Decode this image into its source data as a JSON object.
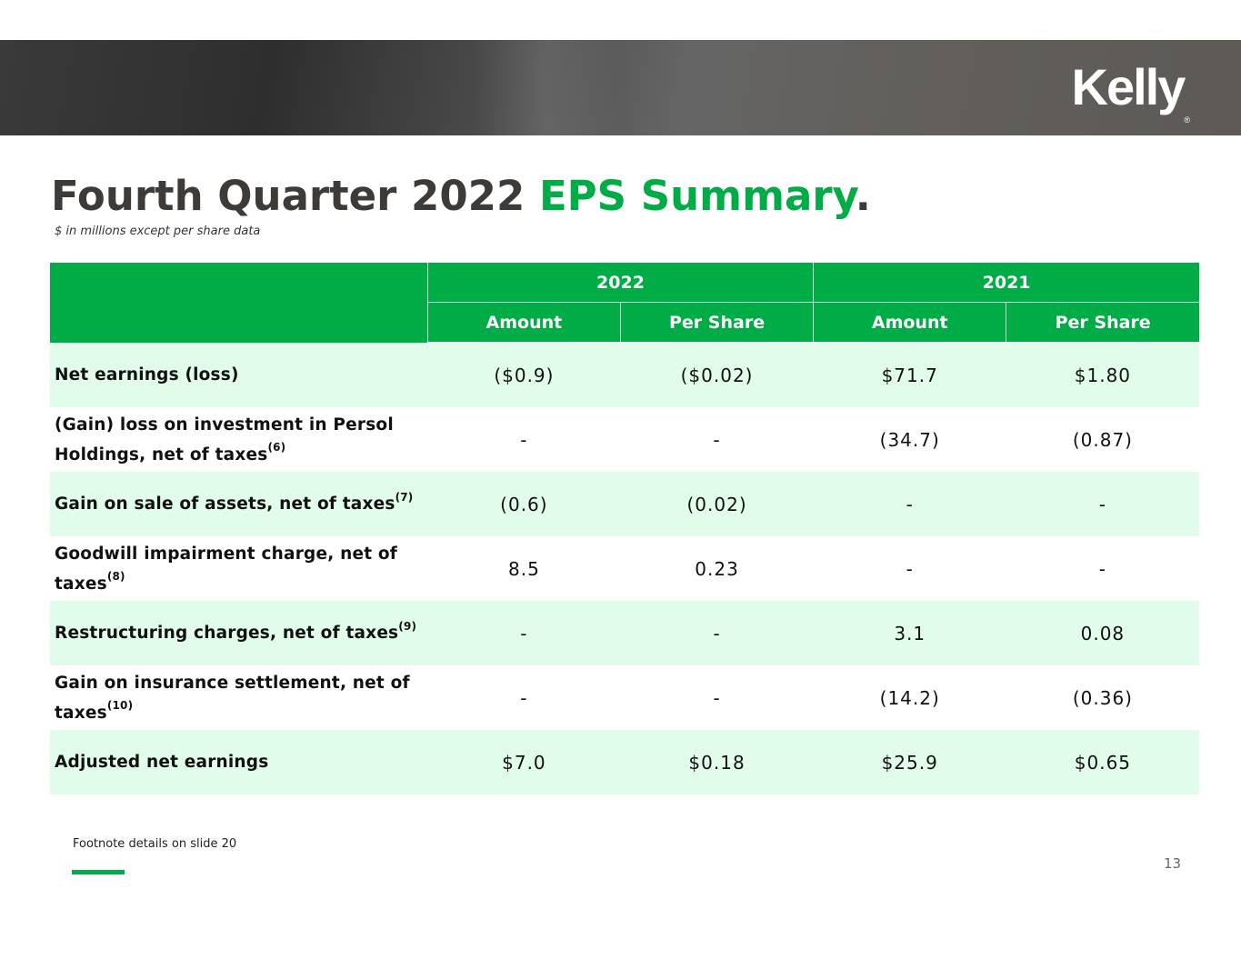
{
  "header": {
    "logo_text": "Kelly",
    "logo_mark": "®"
  },
  "title": {
    "part1": "Fourth Quarter 2022 ",
    "accent": "EPS Summary",
    "period": "."
  },
  "subtitle": "$ in millions except per share data",
  "table": {
    "year_headers": [
      "2022",
      "2021"
    ],
    "sub_headers": [
      "Amount",
      "Per Share",
      "Amount",
      "Per Share"
    ],
    "rows": [
      {
        "label": "Net earnings (loss)",
        "sup": "",
        "values": [
          "($0.9)",
          "($0.02)",
          "$71.7",
          "$1.80"
        ]
      },
      {
        "label": "(Gain) loss on investment in Persol Holdings, net of taxes",
        "sup": "(6)",
        "values": [
          "-",
          "-",
          "(34.7)",
          "(0.87)"
        ]
      },
      {
        "label": "Gain on sale of assets, net of taxes",
        "sup": "(7)",
        "values": [
          "(0.6)",
          "(0.02)",
          "-",
          "-"
        ]
      },
      {
        "label": "Goodwill impairment charge, net of taxes",
        "sup": "(8)",
        "values": [
          "8.5",
          "0.23",
          "-",
          "-"
        ]
      },
      {
        "label": "Restructuring charges, net of taxes",
        "sup": "(9)",
        "values": [
          "-",
          "-",
          "3.1",
          "0.08"
        ]
      },
      {
        "label": "Gain on insurance settlement, net of taxes",
        "sup": "(10)",
        "values": [
          "-",
          "-",
          "(14.2)",
          "(0.36)"
        ]
      },
      {
        "label": "Adjusted net earnings",
        "sup": "",
        "values": [
          "$7.0",
          "$0.18",
          "$25.9",
          "$0.65"
        ]
      }
    ]
  },
  "footnote": "Footnote details on slide 20",
  "page_number": "13",
  "colors": {
    "accent": "#00ac45",
    "row_shade": "#e2fcec",
    "title": "#3d3a37"
  }
}
